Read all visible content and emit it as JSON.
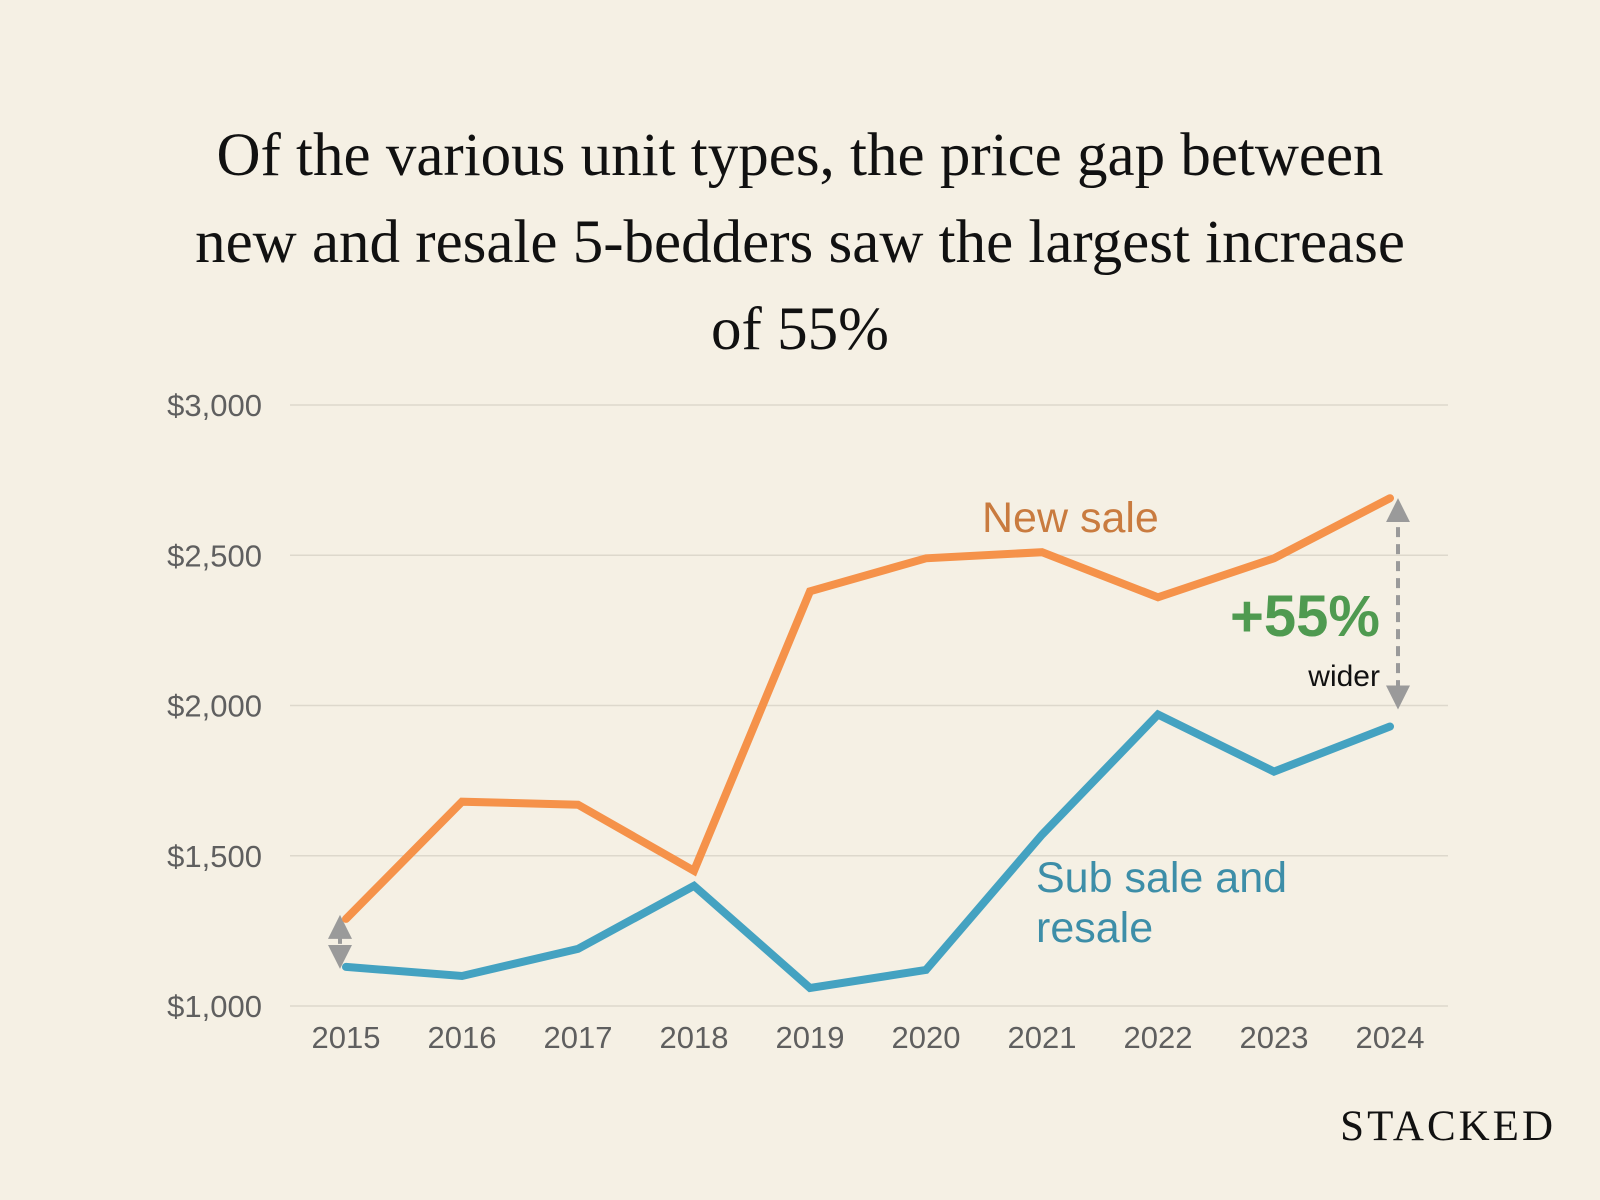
{
  "title_lines": [
    "Of the various unit types, the price gap between",
    "new and resale 5-bedders saw the largest increase",
    "of 55%"
  ],
  "brand": "STACKED",
  "colors": {
    "new_sale": "#f5924a",
    "sub_sale_resale": "#44a2c1",
    "arrow": "#9a9a9a",
    "annotation": "#4f9a50",
    "grid": "#ddd8cc",
    "background": "#f5f0e4"
  },
  "chart_data": {
    "type": "line",
    "title": "Of the various unit types, the price gap between new and resale 5-bedders saw the largest increase of 55%",
    "x": [
      2015,
      2016,
      2017,
      2018,
      2019,
      2020,
      2021,
      2022,
      2023,
      2024
    ],
    "ylim": [
      1000,
      3000
    ],
    "yticks": [
      1000,
      1500,
      2000,
      2500,
      3000
    ],
    "ytick_labels": [
      "$1,000",
      "$1,500",
      "$2,000",
      "$2,500",
      "$3,000"
    ],
    "grid": "horizontal",
    "series": [
      {
        "name": "New sale",
        "values": [
          1290,
          1680,
          1670,
          1450,
          2380,
          2490,
          2510,
          2360,
          2490,
          2690
        ]
      },
      {
        "name": "Sub sale and resale",
        "values": [
          1130,
          1100,
          1190,
          1400,
          1060,
          1120,
          1570,
          1970,
          1780,
          1930
        ]
      }
    ],
    "annotation": {
      "value": "+55%",
      "text": "wider"
    }
  }
}
